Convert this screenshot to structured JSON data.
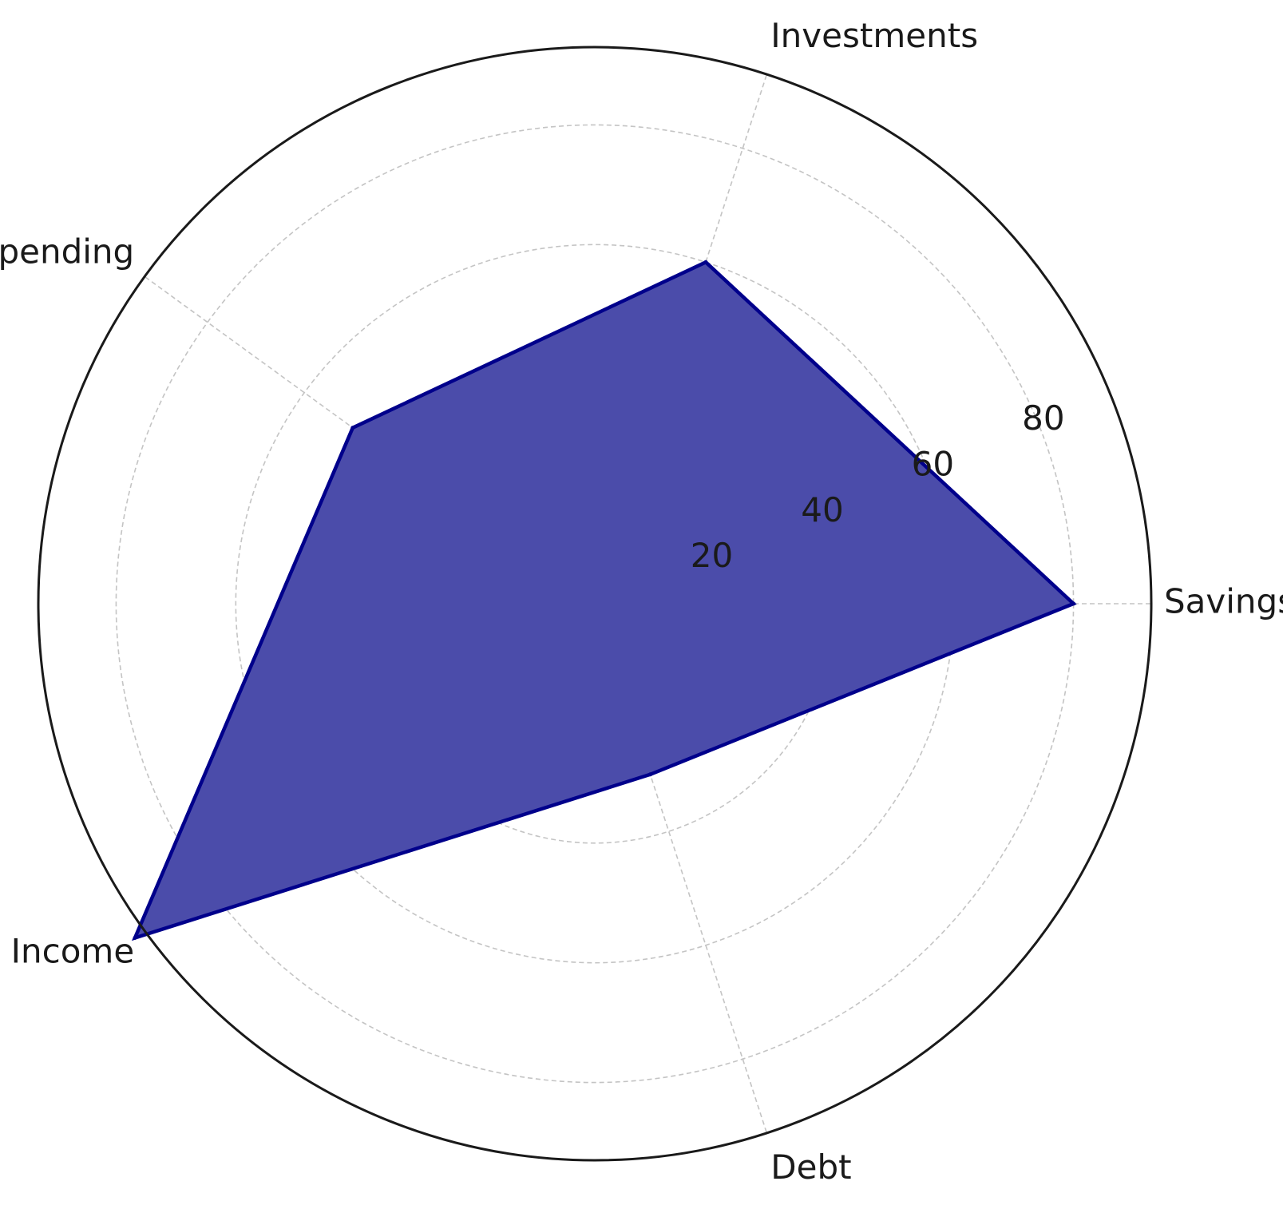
{
  "chart_data": {
    "type": "radar",
    "categories": [
      "Savings",
      "Investments",
      "Spending",
      "Income",
      "Debt"
    ],
    "series": [
      {
        "values": [
          80,
          60,
          50,
          95,
          30
        ],
        "fill_color": "#4b4caa",
        "line_color": "#00008b"
      }
    ],
    "r_ticks": [
      20,
      40,
      60,
      80
    ],
    "rlim": [
      0,
      93
    ],
    "grid": true,
    "grid_style": "dashed"
  }
}
